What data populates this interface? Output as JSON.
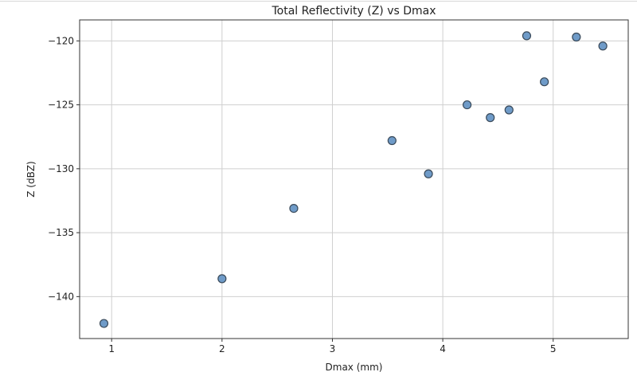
{
  "chart_data": {
    "type": "scatter",
    "title": "Total Reflectivity (Z) vs Dmax",
    "xlabel": "Dmax (mm)",
    "ylabel": "Z (dBZ)",
    "xlim": [
      0.71,
      5.68
    ],
    "ylim": [
      -143.28,
      -118.36
    ],
    "xticks": [
      1,
      2,
      3,
      4,
      5
    ],
    "yticks": [
      -120,
      -125,
      -130,
      -135,
      -140
    ],
    "xtick_labels": [
      "1",
      "2",
      "3",
      "4",
      "5"
    ],
    "ytick_labels": [
      "−120",
      "−125",
      "−130",
      "−135",
      "−140"
    ],
    "grid": true,
    "marker_color": "#6f9bc8",
    "marker_edge_color": "#3a4a5a",
    "points": [
      {
        "x": 0.93,
        "y": -142.1
      },
      {
        "x": 2.0,
        "y": -138.6
      },
      {
        "x": 2.65,
        "y": -133.1
      },
      {
        "x": 3.54,
        "y": -127.8
      },
      {
        "x": 3.87,
        "y": -130.4
      },
      {
        "x": 4.22,
        "y": -125.0
      },
      {
        "x": 4.43,
        "y": -126.0
      },
      {
        "x": 4.6,
        "y": -125.4
      },
      {
        "x": 4.76,
        "y": -119.6
      },
      {
        "x": 4.92,
        "y": -123.2
      },
      {
        "x": 5.21,
        "y": -119.7
      },
      {
        "x": 5.45,
        "y": -120.4
      }
    ]
  }
}
